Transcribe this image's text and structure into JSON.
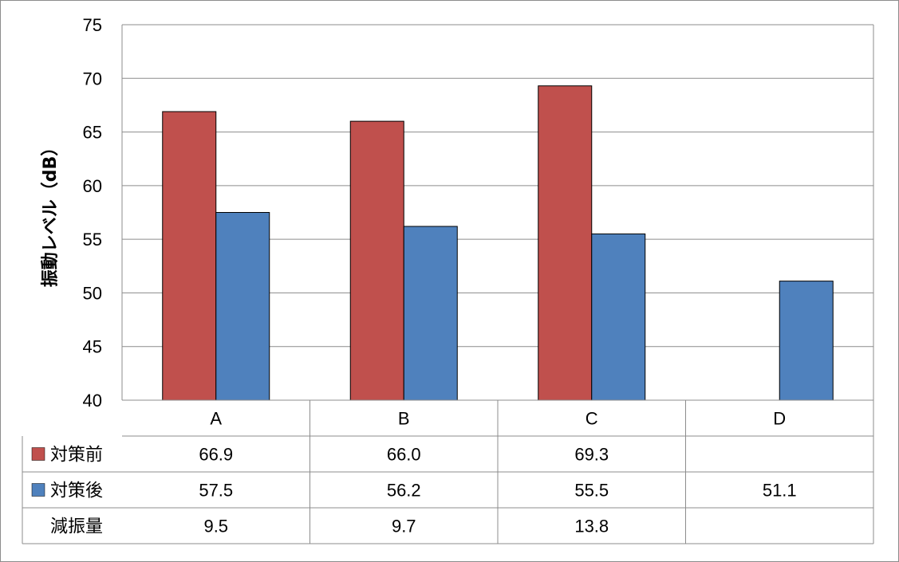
{
  "chart_data": {
    "type": "bar",
    "categories": [
      "A",
      "B",
      "C",
      "D"
    ],
    "series": [
      {
        "name": "対策前",
        "values": [
          66.9,
          66.0,
          69.3,
          null
        ],
        "color": "#c0504d"
      },
      {
        "name": "対策後",
        "values": [
          57.5,
          56.2,
          55.5,
          51.1
        ],
        "color": "#4f81bd"
      }
    ],
    "ylabel": "振動レベル（dB）",
    "ylim": [
      40,
      75
    ],
    "yticks": [
      40,
      45,
      50,
      55,
      60,
      65,
      70,
      75
    ],
    "grid": true,
    "data_table": {
      "rows": [
        {
          "label": "対策前",
          "legend_color": "#c0504d",
          "cells": [
            "66.9",
            "66.0",
            "69.3",
            ""
          ]
        },
        {
          "label": "対策後",
          "legend_color": "#4f81bd",
          "cells": [
            "57.5",
            "56.2",
            "55.5",
            "51.1"
          ]
        },
        {
          "label": "減振量",
          "legend_color": null,
          "cells": [
            "9.5",
            "9.7",
            "13.8",
            ""
          ]
        }
      ]
    }
  }
}
